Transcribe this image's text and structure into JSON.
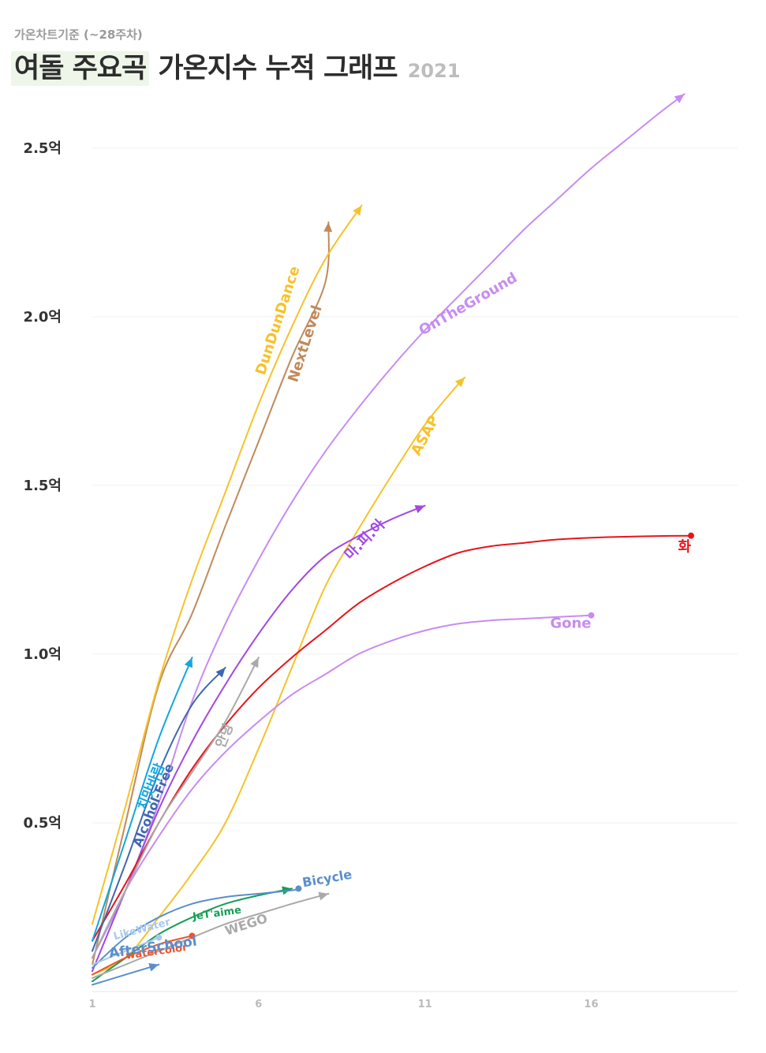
{
  "header": {
    "subtitle": "가온차트기준 (~28주차)",
    "title_highlight": "여돌 주요곡",
    "title_rest": " 가온지수 누적 그래프",
    "year": "2021"
  },
  "chart_data": {
    "type": "line",
    "title": "여돌 주요곡 가온지수 누적 그래프",
    "subtitle": "가온차트기준 (~28주차)",
    "xlabel": "",
    "ylabel": "",
    "xlim": [
      1,
      20.5
    ],
    "ylim": [
      0,
      2.6
    ],
    "x_ticks": [
      1,
      6,
      11,
      16
    ],
    "y_ticks": [
      {
        "value": 0.5,
        "label": "0.5억"
      },
      {
        "value": 1.0,
        "label": "1.0억"
      },
      {
        "value": 1.5,
        "label": "1.5억"
      },
      {
        "value": 2.0,
        "label": "2.0억"
      },
      {
        "value": 2.5,
        "label": "2.5억"
      }
    ],
    "grid": true,
    "legend": "inline labels",
    "series": [
      {
        "name": "OnTheGround",
        "color": "#c78cf2",
        "end": "arrow",
        "label_angle": -30,
        "label_size": 18,
        "points": [
          [
            1,
            0.1
          ],
          [
            2,
            0.3
          ],
          [
            3,
            0.56
          ],
          [
            4,
            0.86
          ],
          [
            5,
            1.09
          ],
          [
            6,
            1.28
          ],
          [
            7,
            1.45
          ],
          [
            8,
            1.6
          ],
          [
            9,
            1.73
          ],
          [
            10,
            1.85
          ],
          [
            11,
            1.96
          ],
          [
            12,
            2.06
          ],
          [
            13,
            2.16
          ],
          [
            14,
            2.26
          ],
          [
            15,
            2.35
          ],
          [
            16,
            2.44
          ],
          [
            17,
            2.52
          ],
          [
            18,
            2.6
          ],
          [
            18.8,
            2.66
          ]
        ]
      },
      {
        "name": "NextLevel",
        "color": "#c08a5a",
        "end": "arrow",
        "label_angle": -72,
        "label_size": 18,
        "points": [
          [
            1,
            0.08
          ],
          [
            2,
            0.5
          ],
          [
            3,
            0.91
          ],
          [
            4,
            1.12
          ],
          [
            5,
            1.38
          ],
          [
            6,
            1.63
          ],
          [
            7,
            1.88
          ],
          [
            8,
            2.1
          ],
          [
            8.1,
            2.28
          ]
        ]
      },
      {
        "name": "DunDunDance",
        "color": "#f6c22a",
        "end": "arrow",
        "label_angle": -72,
        "label_size": 18,
        "points": [
          [
            1,
            0.2
          ],
          [
            2,
            0.55
          ],
          [
            3,
            0.92
          ],
          [
            4,
            1.22
          ],
          [
            5,
            1.48
          ],
          [
            6,
            1.74
          ],
          [
            7,
            1.97
          ],
          [
            8,
            2.17
          ],
          [
            9.1,
            2.33
          ]
        ]
      },
      {
        "name": "ASAP",
        "color": "#f6c22a",
        "end": "arrow",
        "label_angle": -62,
        "label_size": 18,
        "points": [
          [
            1,
            0.05
          ],
          [
            2,
            0.1
          ],
          [
            3,
            0.22
          ],
          [
            4,
            0.35
          ],
          [
            5,
            0.5
          ],
          [
            6,
            0.72
          ],
          [
            7,
            0.96
          ],
          [
            8,
            1.2
          ],
          [
            9,
            1.37
          ],
          [
            10,
            1.53
          ],
          [
            11,
            1.68
          ],
          [
            12,
            1.8
          ],
          [
            12.2,
            1.82
          ]
        ]
      },
      {
        "name": "마.피.아",
        "color": "#a347e5",
        "end": "arrow",
        "label_angle": -45,
        "label_size": 18,
        "points": [
          [
            1,
            0.06
          ],
          [
            2,
            0.3
          ],
          [
            3,
            0.54
          ],
          [
            4,
            0.74
          ],
          [
            5,
            0.91
          ],
          [
            6,
            1.06
          ],
          [
            7,
            1.19
          ],
          [
            8,
            1.29
          ],
          [
            9,
            1.35
          ],
          [
            10,
            1.4
          ],
          [
            11,
            1.44
          ]
        ]
      },
      {
        "name": "화",
        "color": "#e8141b",
        "end": "dot",
        "label_angle": 0,
        "label_size": 18,
        "points": [
          [
            1,
            0.15
          ],
          [
            2,
            0.32
          ],
          [
            3,
            0.5
          ],
          [
            4,
            0.66
          ],
          [
            5,
            0.79
          ],
          [
            6,
            0.9
          ],
          [
            7,
            0.99
          ],
          [
            8,
            1.07
          ],
          [
            9,
            1.15
          ],
          [
            10,
            1.21
          ],
          [
            11,
            1.26
          ],
          [
            12,
            1.3
          ],
          [
            13,
            1.32
          ],
          [
            14,
            1.33
          ],
          [
            15,
            1.34
          ],
          [
            16,
            1.345
          ],
          [
            17,
            1.348
          ],
          [
            18,
            1.35
          ],
          [
            19,
            1.351
          ]
        ]
      },
      {
        "name": "Gone",
        "color": "#c78cf2",
        "end": "dot",
        "label_angle": 0,
        "label_size": 18,
        "points": [
          [
            1,
            0.1
          ],
          [
            2,
            0.3
          ],
          [
            3,
            0.46
          ],
          [
            4,
            0.6
          ],
          [
            5,
            0.71
          ],
          [
            6,
            0.8
          ],
          [
            7,
            0.88
          ],
          [
            8,
            0.94
          ],
          [
            9,
            1.0
          ],
          [
            10,
            1.04
          ],
          [
            11,
            1.07
          ],
          [
            12,
            1.09
          ],
          [
            13,
            1.1
          ],
          [
            14,
            1.105
          ],
          [
            15,
            1.11
          ],
          [
            16,
            1.115
          ]
        ]
      },
      {
        "name": "치맛바람",
        "color": "#14a6e0",
        "end": "arrow",
        "label_angle": -68,
        "label_size": 17,
        "points": [
          [
            1,
            0.15
          ],
          [
            2,
            0.45
          ],
          [
            3,
            0.75
          ],
          [
            4,
            0.99
          ]
        ]
      },
      {
        "name": "Alcohol-Free",
        "color": "#3f67b0",
        "end": "arrow",
        "label_angle": -68,
        "label_size": 16,
        "points": [
          [
            1,
            0.12
          ],
          [
            2,
            0.38
          ],
          [
            3,
            0.65
          ],
          [
            4,
            0.85
          ],
          [
            5,
            0.96
          ]
        ]
      },
      {
        "name": "안녕",
        "color": "#a9a9a9",
        "end": "arrow",
        "label_angle": -68,
        "label_size": 17,
        "points": [
          [
            1,
            0.1
          ],
          [
            2,
            0.3
          ],
          [
            3,
            0.5
          ],
          [
            4,
            0.65
          ],
          [
            5,
            0.8
          ],
          [
            6,
            0.99
          ]
        ]
      },
      {
        "name": "JeT'aime",
        "color": "#159e55",
        "end": "arrow",
        "label_angle": -8,
        "label_size": 13,
        "points": [
          [
            1,
            0.03
          ],
          [
            2,
            0.1
          ],
          [
            3,
            0.17
          ],
          [
            4,
            0.22
          ],
          [
            5,
            0.26
          ],
          [
            6,
            0.285
          ],
          [
            7,
            0.305
          ]
        ]
      },
      {
        "name": "Bicycle",
        "color": "#5b8ecb",
        "end": "dot",
        "label_angle": -10,
        "label_size": 16,
        "points": [
          [
            1,
            0.07
          ],
          [
            2,
            0.16
          ],
          [
            3,
            0.22
          ],
          [
            4,
            0.26
          ],
          [
            5,
            0.28
          ],
          [
            6,
            0.29
          ],
          [
            7,
            0.3
          ],
          [
            7.2,
            0.305
          ]
        ]
      },
      {
        "name": "WEGO",
        "color": "#a9a9a9",
        "end": "arrow",
        "label_angle": -18,
        "label_size": 16,
        "points": [
          [
            1,
            0.04
          ],
          [
            2,
            0.08
          ],
          [
            3,
            0.12
          ],
          [
            4,
            0.16
          ],
          [
            5,
            0.2
          ],
          [
            6,
            0.23
          ],
          [
            7,
            0.26
          ],
          [
            8.1,
            0.29
          ]
        ]
      },
      {
        "name": "watercolor",
        "color": "#f0522c",
        "end": "dot",
        "label_angle": -8,
        "label_size": 13,
        "points": [
          [
            1,
            0.05
          ],
          [
            2,
            0.1
          ],
          [
            3,
            0.14
          ],
          [
            4,
            0.165
          ]
        ]
      },
      {
        "name": "LikeWater",
        "color": "#a9c9ec",
        "end": "dot",
        "label_angle": -15,
        "label_size": 13,
        "points": [
          [
            1,
            0.08
          ],
          [
            2,
            0.12
          ],
          [
            3,
            0.16
          ]
        ]
      },
      {
        "name": "AfterSchool",
        "color": "#5b8ecb",
        "end": "arrow",
        "label_angle": -8,
        "label_size": 17,
        "points": [
          [
            1,
            0.02
          ],
          [
            2,
            0.05
          ],
          [
            3,
            0.08
          ]
        ]
      }
    ]
  }
}
